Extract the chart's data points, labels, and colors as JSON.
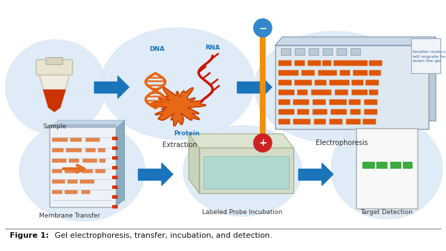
{
  "bg_color": "#ffffff",
  "title_bold": "Figure 1:",
  "title_regular": " Gel electrophoresis, transfer, incubation, and detection.",
  "circle_color": "#dce9f5",
  "arrow_color": "#1a74bc",
  "orange": "#e8600a",
  "red_orange": "#d94010",
  "gel_orange": "#e05a10",
  "green": "#3daa3d",
  "note_text": "Smaller molecules\nwill migrate farther\ndown the gel",
  "dna_label": "DNA",
  "rna_label": "RNA",
  "protein_label": "Protein",
  "minus_label": "−",
  "plus_label": "+"
}
